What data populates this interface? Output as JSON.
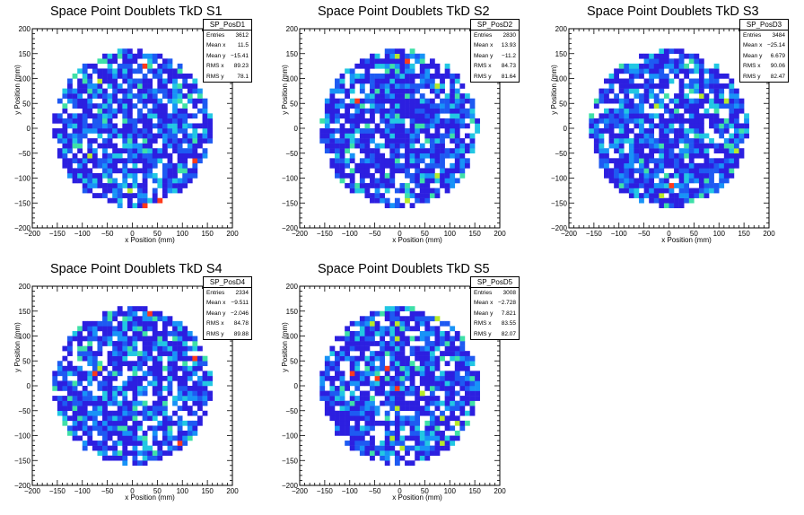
{
  "chart_data": [
    {
      "type": "heatmap",
      "title": "Space Point Doublets TkD S1",
      "xlabel": "x Position (mm)",
      "ylabel": "y Position (mm)",
      "xlim": [
        -200,
        200
      ],
      "ylim": [
        -200,
        200
      ],
      "xticks": [
        "−200",
        "−150",
        "−100",
        "−50",
        "0",
        "50",
        "100",
        "150",
        "200"
      ],
      "yticks": [
        "−200",
        "−150",
        "−100",
        "−50",
        "0",
        "50",
        "100",
        "150",
        "200"
      ],
      "disk_radius": 160,
      "stats": {
        "name": "SP_PosD1",
        "rows": [
          {
            "label": "Entries",
            "value": "3612"
          },
          {
            "label": "Mean x",
            "value": "11.5"
          },
          {
            "label": "Mean y",
            "value": "−15.41"
          },
          {
            "label": "RMS x",
            "value": "89.23"
          },
          {
            "label": "RMS y",
            "value": "78.1"
          }
        ]
      }
    },
    {
      "type": "heatmap",
      "title": "Space Point Doublets TkD S2",
      "xlabel": "x Position (mm)",
      "ylabel": "y Position (mm)",
      "xlim": [
        -200,
        200
      ],
      "ylim": [
        -200,
        200
      ],
      "xticks": [
        "−200",
        "−150",
        "−100",
        "−50",
        "0",
        "50",
        "100",
        "150",
        "200"
      ],
      "yticks": [
        "−200",
        "−150",
        "−100",
        "−50",
        "0",
        "50",
        "100",
        "150",
        "200"
      ],
      "disk_radius": 160,
      "stats": {
        "name": "SP_PosD2",
        "rows": [
          {
            "label": "Entries",
            "value": "2830"
          },
          {
            "label": "Mean x",
            "value": "13.93"
          },
          {
            "label": "Mean y",
            "value": "−11.2"
          },
          {
            "label": "RMS x",
            "value": "84.73"
          },
          {
            "label": "RMS y",
            "value": "81.64"
          }
        ]
      }
    },
    {
      "type": "heatmap",
      "title": "Space Point Doublets TkD S3",
      "xlabel": "x Position (mm)",
      "ylabel": "y Position (mm)",
      "xlim": [
        -200,
        200
      ],
      "ylim": [
        -200,
        200
      ],
      "xticks": [
        "−200",
        "−150",
        "−100",
        "−50",
        "0",
        "50",
        "100",
        "150",
        "200"
      ],
      "yticks": [
        "−200",
        "−150",
        "−100",
        "−50",
        "0",
        "50",
        "100",
        "150",
        "200"
      ],
      "disk_radius": 160,
      "stats": {
        "name": "SP_PosD3",
        "rows": [
          {
            "label": "Entries",
            "value": "3484"
          },
          {
            "label": "Mean x",
            "value": "−25.14"
          },
          {
            "label": "Mean y",
            "value": "6.679"
          },
          {
            "label": "RMS x",
            "value": "90.06"
          },
          {
            "label": "RMS y",
            "value": "82.47"
          }
        ]
      }
    },
    {
      "type": "heatmap",
      "title": "Space Point Doublets TkD S4",
      "xlabel": "x Position (mm)",
      "ylabel": "y Position (mm)",
      "xlim": [
        -200,
        200
      ],
      "ylim": [
        -200,
        200
      ],
      "xticks": [
        "−200",
        "−150",
        "−100",
        "−50",
        "0",
        "50",
        "100",
        "150",
        "200"
      ],
      "yticks": [
        "−200",
        "−150",
        "−100",
        "−50",
        "0",
        "50",
        "100",
        "150",
        "200"
      ],
      "disk_radius": 160,
      "stats": {
        "name": "SP_PosD4",
        "rows": [
          {
            "label": "Entries",
            "value": "2334"
          },
          {
            "label": "Mean x",
            "value": "−9.511"
          },
          {
            "label": "Mean y",
            "value": "−2.046"
          },
          {
            "label": "RMS x",
            "value": "84.78"
          },
          {
            "label": "RMS y",
            "value": "89.88"
          }
        ]
      }
    },
    {
      "type": "heatmap",
      "title": "Space Point Doublets TkD S5",
      "xlabel": "x Position (mm)",
      "ylabel": "y Position (mm)",
      "xlim": [
        -200,
        200
      ],
      "ylim": [
        -200,
        200
      ],
      "xticks": [
        "−200",
        "−150",
        "−100",
        "−50",
        "0",
        "50",
        "100",
        "150",
        "200"
      ],
      "yticks": [
        "−200",
        "−150",
        "−100",
        "−50",
        "0",
        "50",
        "100",
        "150",
        "200"
      ],
      "disk_radius": 160,
      "stats": {
        "name": "SP_PosD5",
        "rows": [
          {
            "label": "Entries",
            "value": "3008"
          },
          {
            "label": "Mean x",
            "value": "−2.728"
          },
          {
            "label": "Mean y",
            "value": "7.821"
          },
          {
            "label": "RMS x",
            "value": "83.55"
          },
          {
            "label": "RMS y",
            "value": "82.07"
          }
        ]
      }
    }
  ],
  "colors": {
    "palette": [
      "#2c1fe0",
      "#1e5af2",
      "#1893f7",
      "#22c7e3",
      "#3fe0a8",
      "#b7ea2a",
      "#ff3a1a"
    ],
    "frame": "#000000",
    "background": "#ffffff"
  }
}
